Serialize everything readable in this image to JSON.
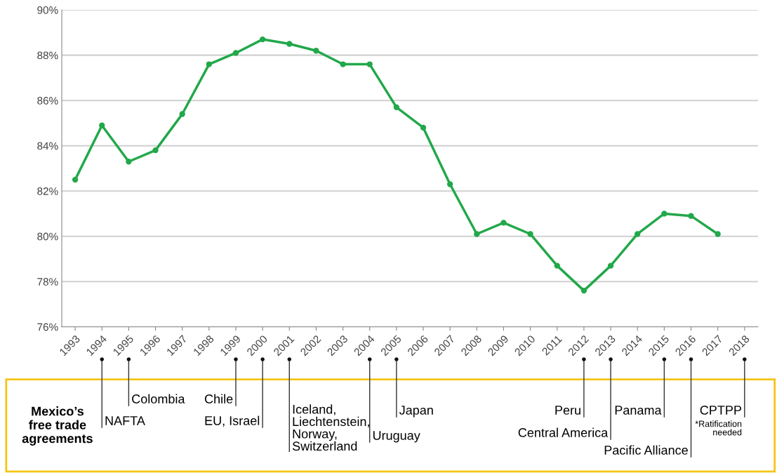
{
  "chart_data": {
    "type": "line",
    "categories": [
      "1993",
      "1994",
      "1995",
      "1996",
      "1997",
      "1998",
      "1999",
      "2000",
      "2001",
      "2002",
      "2003",
      "2004",
      "2005",
      "2006",
      "2007",
      "2008",
      "2009",
      "2010",
      "2011",
      "2012",
      "2013",
      "2014",
      "2015",
      "2016",
      "2017",
      "2018"
    ],
    "series": [
      {
        "color": "#22a84a",
        "values": [
          82.5,
          84.9,
          83.3,
          83.8,
          85.4,
          87.6,
          88.1,
          88.7,
          88.5,
          88.2,
          87.6,
          87.6,
          85.7,
          84.8,
          82.3,
          80.1,
          80.6,
          80.1,
          78.7,
          77.6,
          78.7,
          80.1,
          81.0,
          80.9,
          80.1,
          null
        ]
      }
    ],
    "ylim": [
      76,
      90
    ],
    "yticks": [
      {
        "value": 76,
        "label": "76%"
      },
      {
        "value": 78,
        "label": "78%"
      },
      {
        "value": 80,
        "label": "80%"
      },
      {
        "value": 82,
        "label": "82%"
      },
      {
        "value": 84,
        "label": "84%"
      },
      {
        "value": 86,
        "label": "86%"
      },
      {
        "value": 88,
        "label": "88%"
      },
      {
        "value": 90,
        "label": "90%"
      }
    ],
    "grid": "y",
    "marker": "circle",
    "line_style": "solid",
    "annotations": [
      "Mexico’s\nfree trade\nagreements",
      "NAFTA",
      "Colombia",
      "Chile",
      "EU, Israel",
      "Iceland,\nLiechtenstein,\nNorway,\nSwitzerland",
      "Uruguay",
      "Japan",
      "Peru",
      "Central America",
      "Panama",
      "Pacific Alliance",
      "CPTPP",
      "*Ratification\nneeded"
    ]
  }
}
